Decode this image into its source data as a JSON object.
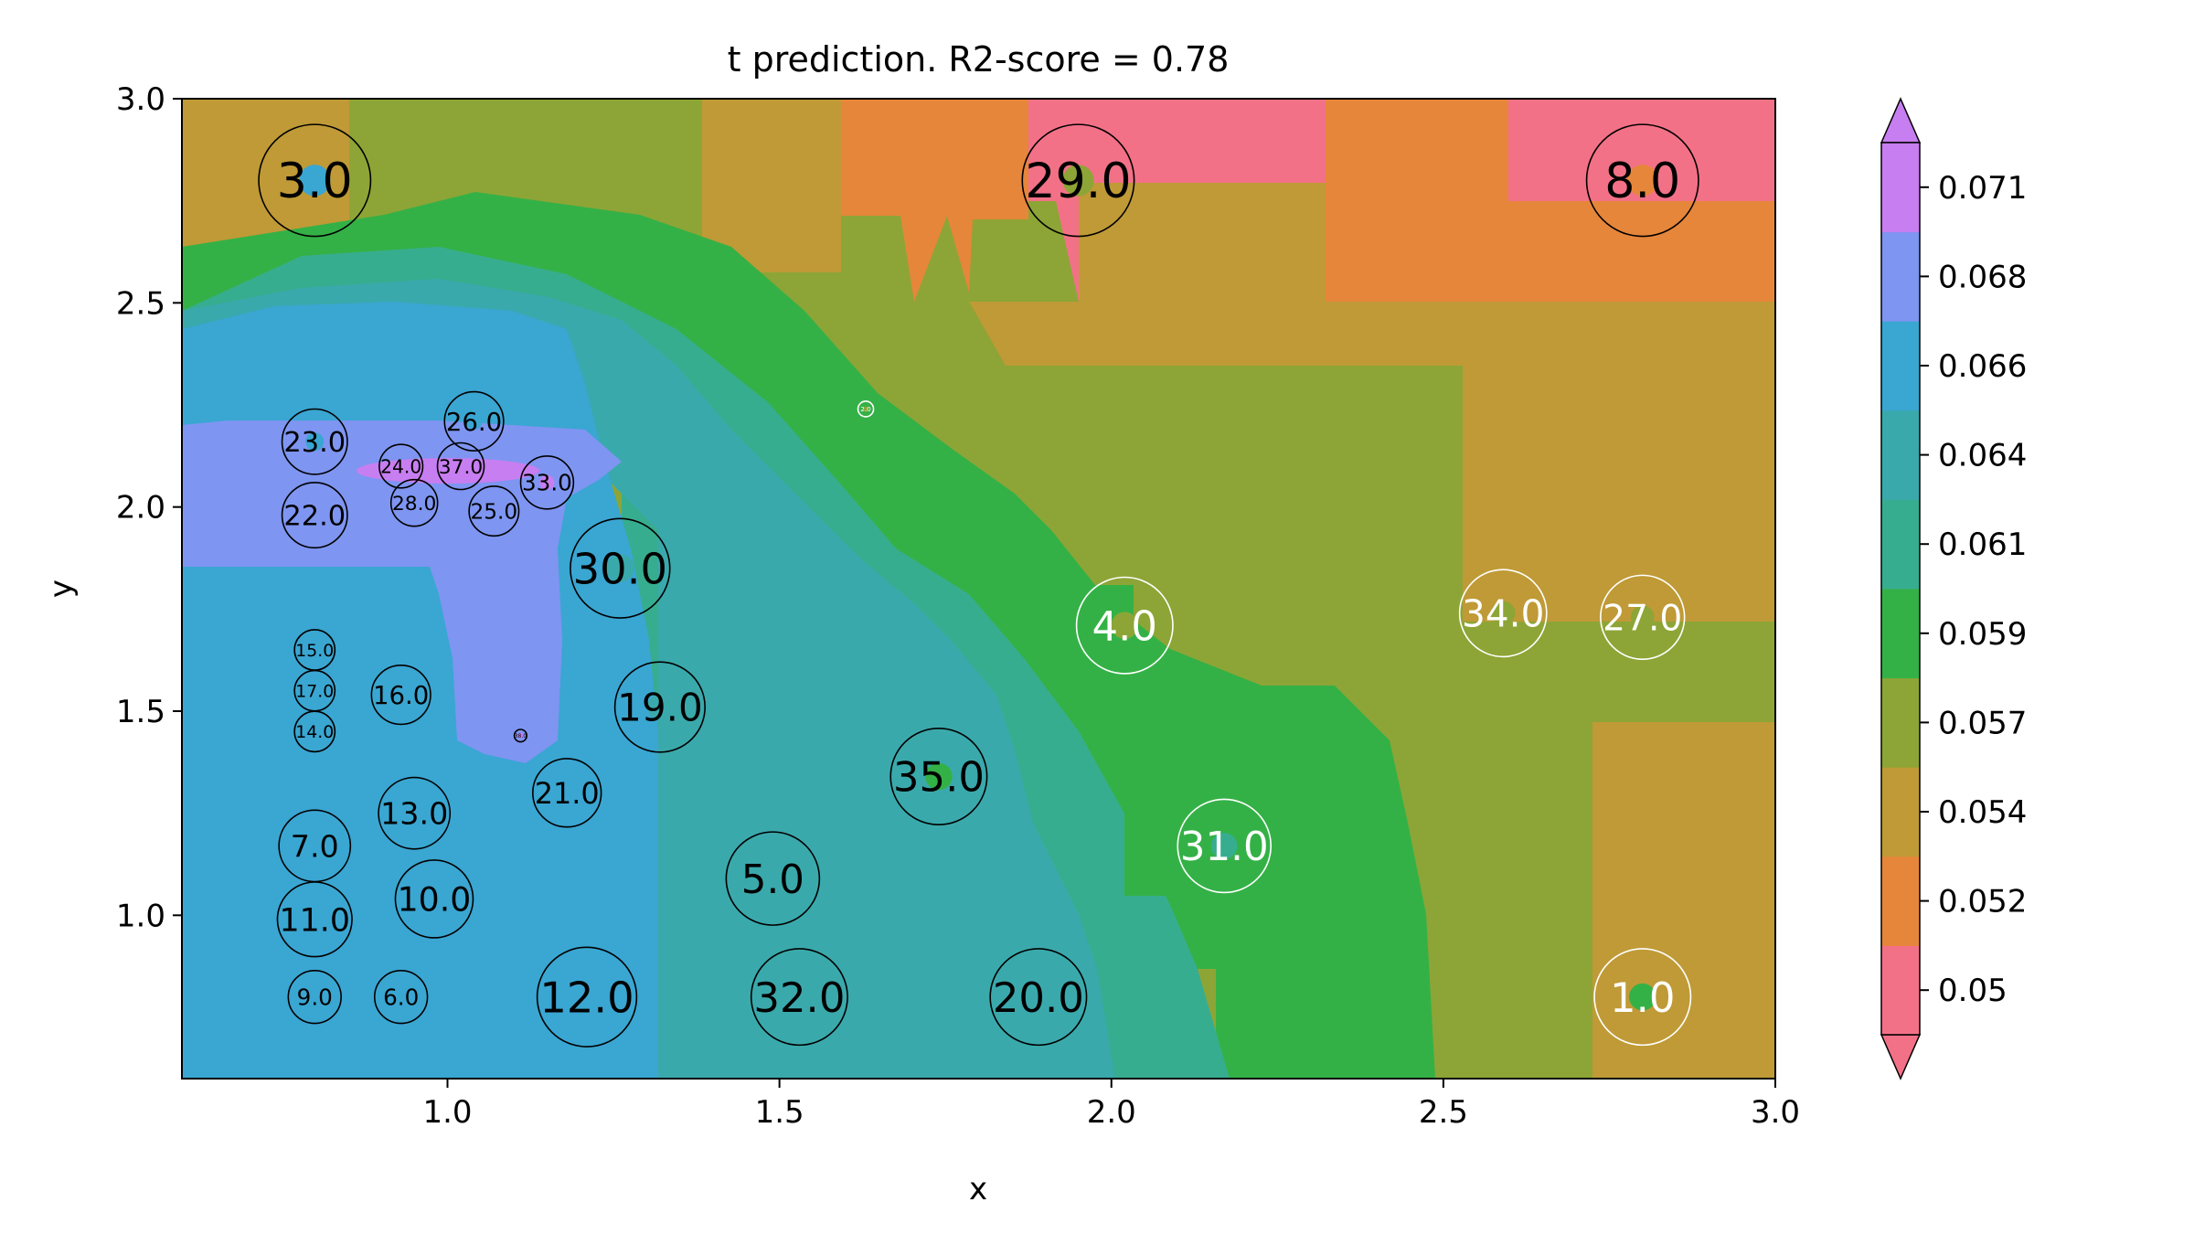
{
  "chart_data": {
    "type": "heatmap",
    "title": "t prediction. R2-score = 0.78",
    "xlabel": "x",
    "ylabel": "y",
    "xlim": [
      0.6,
      3.0
    ],
    "ylim": [
      0.6,
      3.0
    ],
    "x_ticks": [
      {
        "value": 1.0,
        "label": "1.0"
      },
      {
        "value": 1.5,
        "label": "1.5"
      },
      {
        "value": 2.0,
        "label": "2.0"
      },
      {
        "value": 2.5,
        "label": "2.5"
      },
      {
        "value": 3.0,
        "label": "3.0"
      }
    ],
    "y_ticks": [
      {
        "value": 1.0,
        "label": "1.0"
      },
      {
        "value": 1.5,
        "label": "1.5"
      },
      {
        "value": 2.0,
        "label": "2.0"
      },
      {
        "value": 2.5,
        "label": "2.5"
      },
      {
        "value": 3.0,
        "label": "3.0"
      }
    ],
    "grid": false,
    "colorbar": {
      "placement": "right",
      "extend": "both",
      "under_color": "#f37187",
      "over_color": "#c77ef0",
      "levels": [
        {
          "label": "0.05",
          "color": "#f37187"
        },
        {
          "label": "0.052",
          "color": "#e6863a"
        },
        {
          "label": "0.054",
          "color": "#bf9a36"
        },
        {
          "label": "0.057",
          "color": "#8da536"
        },
        {
          "label": "0.059",
          "color": "#34b146"
        },
        {
          "label": "0.061",
          "color": "#37ad8f"
        },
        {
          "label": "0.064",
          "color": "#3aa9ac"
        },
        {
          "label": "0.066",
          "color": "#3aa6d2"
        },
        {
          "label": "0.068",
          "color": "#7e95f1"
        },
        {
          "label": "0.071",
          "color": "#c77ef0"
        }
      ]
    },
    "points": [
      {
        "x": 0.8,
        "y": 2.8,
        "label": "3.0",
        "value_color": "#3aa6d2",
        "size": 36,
        "text_color": "black"
      },
      {
        "x": 1.95,
        "y": 2.8,
        "label": "29.0",
        "value_color": "#8da536",
        "size": 36,
        "text_color": "black"
      },
      {
        "x": 2.8,
        "y": 2.8,
        "label": "8.0",
        "value_color": "#e6863a",
        "size": 36,
        "text_color": "black"
      },
      {
        "x": 0.8,
        "y": 2.16,
        "label": "23.0",
        "value_color": "#3aa6d2",
        "size": 21,
        "text_color": "black"
      },
      {
        "x": 1.04,
        "y": 2.21,
        "label": "26.0",
        "value_color": "#3aa6d2",
        "size": 19,
        "text_color": "black"
      },
      {
        "x": 0.93,
        "y": 2.1,
        "label": "24.0",
        "value_color": "#c77ef0",
        "size": 14,
        "text_color": "black"
      },
      {
        "x": 1.02,
        "y": 2.1,
        "label": "37.0",
        "value_color": "#c77ef0",
        "size": 15,
        "text_color": "black"
      },
      {
        "x": 1.15,
        "y": 2.06,
        "label": "33.0",
        "value_color": "#c77ef0",
        "size": 17,
        "text_color": "black"
      },
      {
        "x": 0.95,
        "y": 2.01,
        "label": "28.0",
        "value_color": "#7e95f1",
        "size": 15,
        "text_color": "black"
      },
      {
        "x": 1.07,
        "y": 1.99,
        "label": "25.0",
        "value_color": "#7e95f1",
        "size": 16,
        "text_color": "black"
      },
      {
        "x": 0.8,
        "y": 1.98,
        "label": "22.0",
        "value_color": "#7e95f1",
        "size": 21,
        "text_color": "black"
      },
      {
        "x": 1.26,
        "y": 1.85,
        "label": "30.0",
        "value_color": "#3aa9ac",
        "size": 32,
        "text_color": "black"
      },
      {
        "x": 0.8,
        "y": 1.65,
        "label": "15.0",
        "value_color": "#3aa6d2",
        "size": 13,
        "text_color": "black"
      },
      {
        "x": 0.8,
        "y": 1.55,
        "label": "17.0",
        "value_color": "#3aa6d2",
        "size": 13,
        "text_color": "black"
      },
      {
        "x": 0.8,
        "y": 1.45,
        "label": "14.0",
        "value_color": "#3aa6d2",
        "size": 13,
        "text_color": "black"
      },
      {
        "x": 0.93,
        "y": 1.54,
        "label": "16.0",
        "value_color": "#3aa6d2",
        "size": 19,
        "text_color": "black"
      },
      {
        "x": 1.32,
        "y": 1.51,
        "label": "19.0",
        "value_color": "#3aa9ac",
        "size": 29,
        "text_color": "black"
      },
      {
        "x": 1.11,
        "y": 1.44,
        "label": "38.0",
        "value_color": "#c77ef0",
        "size": 4,
        "text_color": "black"
      },
      {
        "x": 1.18,
        "y": 1.3,
        "label": "21.0",
        "value_color": "#3aa6d2",
        "size": 22,
        "text_color": "black"
      },
      {
        "x": 1.74,
        "y": 1.34,
        "label": "35.0",
        "value_color": "#34b146",
        "size": 31,
        "text_color": "black"
      },
      {
        "x": 0.95,
        "y": 1.25,
        "label": "13.0",
        "value_color": "#3aa6d2",
        "size": 23,
        "text_color": "black"
      },
      {
        "x": 0.8,
        "y": 1.17,
        "label": "7.0",
        "value_color": "#3aa6d2",
        "size": 23,
        "text_color": "black"
      },
      {
        "x": 1.49,
        "y": 1.09,
        "label": "5.0",
        "value_color": "#3aa9ac",
        "size": 30,
        "text_color": "black"
      },
      {
        "x": 0.98,
        "y": 1.04,
        "label": "10.0",
        "value_color": "#3aa6d2",
        "size": 25,
        "text_color": "black"
      },
      {
        "x": 0.8,
        "y": 0.99,
        "label": "11.0",
        "value_color": "#3aa6d2",
        "size": 24,
        "text_color": "black"
      },
      {
        "x": 0.8,
        "y": 0.8,
        "label": "9.0",
        "value_color": "#3aa6d2",
        "size": 17,
        "text_color": "black"
      },
      {
        "x": 0.93,
        "y": 0.8,
        "label": "6.0",
        "value_color": "#3aa6d2",
        "size": 17,
        "text_color": "black"
      },
      {
        "x": 1.21,
        "y": 0.8,
        "label": "12.0",
        "value_color": "#3aa6d2",
        "size": 32,
        "text_color": "black"
      },
      {
        "x": 1.53,
        "y": 0.8,
        "label": "32.0",
        "value_color": "#3aa9ac",
        "size": 31,
        "text_color": "black"
      },
      {
        "x": 1.89,
        "y": 0.8,
        "label": "20.0",
        "value_color": "#3aa9ac",
        "size": 31,
        "text_color": "black"
      },
      {
        "x": 1.63,
        "y": 2.24,
        "label": "2.0",
        "value_color": "#8da536",
        "size": 5,
        "text_color": "white"
      },
      {
        "x": 2.02,
        "y": 1.71,
        "label": "4.0",
        "value_color": "#8da536",
        "size": 31,
        "text_color": "white"
      },
      {
        "x": 2.59,
        "y": 1.74,
        "label": "34.0",
        "value_color": "#8da536",
        "size": 28,
        "text_color": "white"
      },
      {
        "x": 2.8,
        "y": 1.73,
        "label": "27.0",
        "value_color": "#8da536",
        "size": 27,
        "text_color": "white"
      },
      {
        "x": 2.17,
        "y": 1.17,
        "label": "31.0",
        "value_color": "#37ad8f",
        "size": 30,
        "text_color": "white"
      },
      {
        "x": 2.8,
        "y": 0.8,
        "label": "1.0",
        "value_color": "#34b146",
        "size": 31,
        "text_color": "white"
      }
    ]
  }
}
